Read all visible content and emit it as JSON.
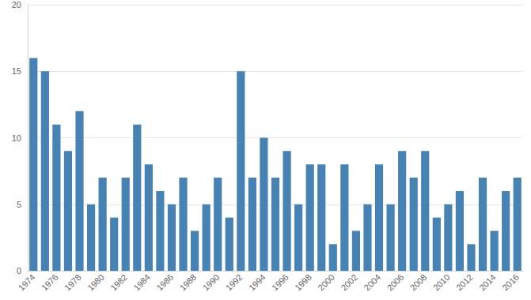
{
  "chart_data": {
    "type": "bar",
    "categories": [
      "1974",
      null,
      "1976",
      null,
      "1978",
      null,
      "1980",
      null,
      "1982",
      null,
      "1984",
      null,
      "1986",
      null,
      "1988",
      null,
      "1990",
      null,
      "1992",
      null,
      "1994",
      null,
      "1996",
      null,
      "1998",
      null,
      "2000",
      null,
      "2002",
      null,
      "2004",
      null,
      "2006",
      null,
      "2008",
      null,
      "2010",
      null,
      "2012",
      null,
      "2014",
      null,
      "2016"
    ],
    "values": [
      16,
      15,
      11,
      9,
      12,
      5,
      7,
      4,
      7,
      11,
      8,
      6,
      5,
      7,
      3,
      5,
      7,
      4,
      15,
      7,
      10,
      7,
      9,
      5,
      8,
      8,
      2,
      8,
      3,
      5,
      8,
      5,
      9,
      7,
      9,
      4,
      5,
      6,
      2,
      7,
      3,
      6,
      7
    ],
    "color": "#4682b4",
    "ylim": [
      0,
      20
    ],
    "yticks": [
      0,
      5,
      10,
      15,
      20
    ],
    "grid": true
  }
}
